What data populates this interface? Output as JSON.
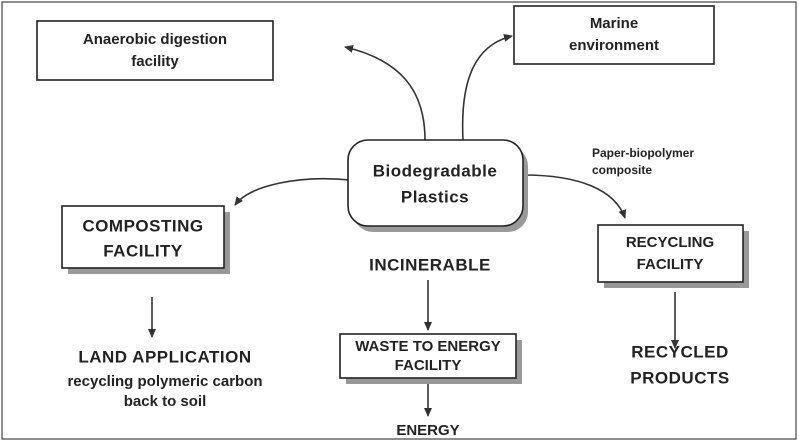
{
  "nodes": {
    "center": [
      "Biodegradable",
      "Plastics"
    ],
    "anaerobic": [
      "Anaerobic digestion",
      "facility"
    ],
    "marine": [
      "Marine",
      "environment"
    ],
    "composting": [
      "COMPOSTING",
      "FACILITY"
    ],
    "recycling": [
      "RECYCLING",
      "FACILITY"
    ],
    "waste": [
      "WASTE TO ENERGY",
      "FACILITY"
    ]
  },
  "labels": {
    "paper": [
      "Paper-biopolymer",
      "composite"
    ],
    "incinerable": "INCINERABLE",
    "land": [
      "LAND APPLICATION",
      "recycling polymeric carbon",
      "back to soil"
    ],
    "recycled": [
      "RECYCLED",
      "PRODUCTS"
    ],
    "energy": "ENERGY"
  }
}
